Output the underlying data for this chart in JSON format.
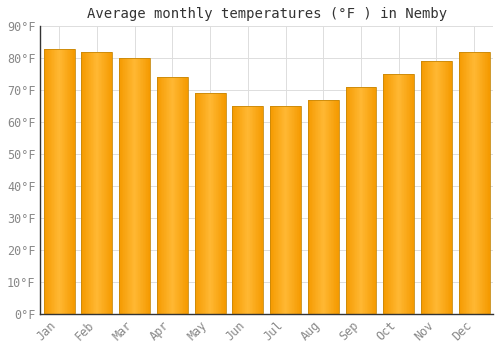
{
  "title": "Average monthly temperatures (°F ) in Nemby",
  "months": [
    "Jan",
    "Feb",
    "Mar",
    "Apr",
    "May",
    "Jun",
    "Jul",
    "Aug",
    "Sep",
    "Oct",
    "Nov",
    "Dec"
  ],
  "values": [
    83,
    82,
    80,
    74,
    69,
    65,
    65,
    67,
    71,
    75,
    79,
    82
  ],
  "bar_color_center": "#FFB833",
  "bar_color_edge": "#F59A00",
  "background_color": "#FFFFFF",
  "plot_bg_color": "#FFFFFF",
  "grid_color": "#DDDDDD",
  "ylim": [
    0,
    90
  ],
  "ytick_step": 10,
  "title_fontsize": 10,
  "tick_fontsize": 8.5,
  "font_family": "monospace",
  "bar_width": 0.82
}
